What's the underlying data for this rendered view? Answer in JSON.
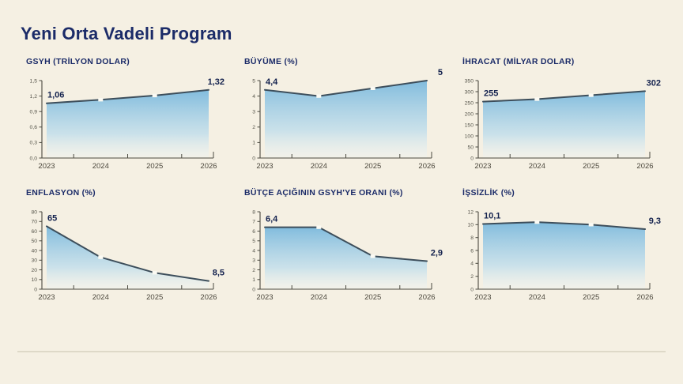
{
  "page": {
    "title": "Yeni Orta Vadeli Program"
  },
  "style": {
    "background": "#f5f0e3",
    "title_color": "#1b2b68",
    "line_color": "#3d4e5b",
    "area_gradient_top": "#7bb9dd",
    "area_gradient_bottom": "#eef4f4",
    "axis_color": "#4b4a40",
    "divider_color": "#ded9c8"
  },
  "chart_data": [
    {
      "type": "area",
      "title": "GSYH (TRİLYON DOLAR)",
      "x": [
        "2023",
        "2024",
        "2025",
        "2026"
      ],
      "values": [
        1.06,
        1.13,
        1.21,
        1.32
      ],
      "ylim": [
        0,
        1.5
      ],
      "ytick_values": [
        0,
        0.3,
        0.6,
        0.9,
        1.2,
        1.5
      ],
      "ytick_labels": [
        "0,0",
        "0,3",
        "0,6",
        "0,9",
        "1,2",
        "1,5"
      ],
      "first_label": "1,06",
      "last_label": "1,32",
      "grid": false,
      "legend": "none"
    },
    {
      "type": "area",
      "title": "BÜYÜME (%)",
      "x": [
        "2023",
        "2024",
        "2025",
        "2026"
      ],
      "values": [
        4.4,
        4.0,
        4.5,
        5.0
      ],
      "ylim": [
        0,
        5
      ],
      "ytick_values": [
        0,
        1,
        2,
        3,
        4,
        5
      ],
      "ytick_labels": [
        "0",
        "1",
        "2",
        "3",
        "4",
        "5"
      ],
      "first_label": "4,4",
      "last_label": "5",
      "grid": false,
      "legend": "none"
    },
    {
      "type": "area",
      "title": "İHRACAT (MİLYAR DOLAR)",
      "x": [
        "2023",
        "2024",
        "2025",
        "2026"
      ],
      "values": [
        255,
        266,
        284,
        302
      ],
      "ylim": [
        0,
        350
      ],
      "ytick_values": [
        0,
        50,
        100,
        150,
        200,
        250,
        300,
        350
      ],
      "ytick_labels": [
        "0",
        "50",
        "100",
        "150",
        "200",
        "250",
        "300",
        "350"
      ],
      "first_label": "255",
      "last_label": "302",
      "grid": false,
      "legend": "none"
    },
    {
      "type": "area",
      "title": "ENFLASYON (%)",
      "x": [
        "2023",
        "2024",
        "2025",
        "2026"
      ],
      "values": [
        65,
        33,
        17,
        8.5
      ],
      "ylim": [
        0,
        80
      ],
      "ytick_values": [
        0,
        10,
        20,
        30,
        40,
        50,
        60,
        70,
        80
      ],
      "ytick_labels": [
        "0",
        "10",
        "20",
        "30",
        "40",
        "50",
        "60",
        "70",
        "80"
      ],
      "first_label": "65",
      "last_label": "8,5",
      "grid": false,
      "legend": "none"
    },
    {
      "type": "area",
      "title": "BÜTÇE AÇIĞININ GSYH'YE ORANI (%)",
      "x": [
        "2023",
        "2024",
        "2025",
        "2026"
      ],
      "values": [
        6.4,
        6.4,
        3.4,
        2.9
      ],
      "ylim": [
        0,
        8
      ],
      "ytick_values": [
        0,
        1,
        2,
        3,
        4,
        5,
        6,
        7,
        8
      ],
      "ytick_labels": [
        "0",
        "1",
        "2",
        "3",
        "4",
        "5",
        "6",
        "7",
        "8"
      ],
      "first_label": "6,4",
      "last_label": "2,9",
      "grid": false,
      "legend": "none"
    },
    {
      "type": "area",
      "title": "İŞSİZLİK (%)",
      "x": [
        "2023",
        "2024",
        "2025",
        "2026"
      ],
      "values": [
        10.1,
        10.4,
        10.0,
        9.3
      ],
      "ylim": [
        0,
        12
      ],
      "ytick_values": [
        0,
        2,
        4,
        6,
        8,
        10,
        12
      ],
      "ytick_labels": [
        "0",
        "2",
        "4",
        "6",
        "8",
        "10",
        "12"
      ],
      "first_label": "10,1",
      "last_label": "9,3",
      "grid": false,
      "legend": "none"
    }
  ]
}
